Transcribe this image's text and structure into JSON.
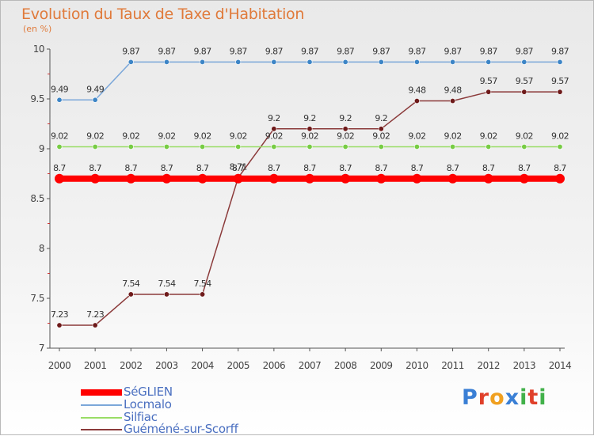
{
  "page": {
    "title": "Evolution du Taux de Taxe d'Habitation",
    "subtitle": "(en %)",
    "logo_text": "Proxiti"
  },
  "logo_colors": [
    "#3a7fd5",
    "#e0402a",
    "#f0a020",
    "#3a7fd5",
    "#42b14a",
    "#e0402a",
    "#42b14a"
  ],
  "chart_data": {
    "type": "line",
    "title": "Evolution du Taux de Taxe d'Habitation",
    "ylabel": "(en %)",
    "xlabel": "",
    "ylim": [
      7,
      10
    ],
    "yticks": [
      7,
      7.5,
      8,
      8.5,
      9,
      9.5,
      10
    ],
    "x": [
      2000,
      2001,
      2002,
      2003,
      2004,
      2005,
      2006,
      2007,
      2008,
      2009,
      2010,
      2011,
      2012,
      2013,
      2014
    ],
    "grid": false,
    "legend_position": "bottom-left",
    "series": [
      {
        "name": "SéGLIEN",
        "color": "#ff0000",
        "marker_color": "#ff0000",
        "values": [
          8.7,
          8.7,
          8.7,
          8.7,
          8.7,
          8.7,
          8.7,
          8.7,
          8.7,
          8.7,
          8.7,
          8.7,
          8.7,
          8.7,
          8.7
        ],
        "labels": [
          "8.7",
          "8.7",
          "8.7",
          "8.7",
          "8.7",
          "8.7",
          "8.7",
          "8.7",
          "8.7",
          "8.7",
          "8.7",
          "8.7",
          "8.7",
          "8.7",
          "8.7"
        ]
      },
      {
        "name": "Locmalo",
        "color": "#7ba7d9",
        "marker_color": "#3d85c6",
        "values": [
          9.49,
          9.49,
          9.87,
          9.87,
          9.87,
          9.87,
          9.87,
          9.87,
          9.87,
          9.87,
          9.87,
          9.87,
          9.87,
          9.87,
          9.87
        ],
        "labels": [
          "9.49",
          "9.49",
          "9.87",
          "9.87",
          "9.87",
          "9.87",
          "9.87",
          "9.87",
          "9.87",
          "9.87",
          "9.87",
          "9.87",
          "9.87",
          "9.87",
          "9.87"
        ]
      },
      {
        "name": "Silfiac",
        "color": "#99dd66",
        "marker_color": "#77cc44",
        "values": [
          9.02,
          9.02,
          9.02,
          9.02,
          9.02,
          9.02,
          9.02,
          9.02,
          9.02,
          9.02,
          9.02,
          9.02,
          9.02,
          9.02,
          9.02
        ],
        "labels": [
          "9.02",
          "9.02",
          "9.02",
          "9.02",
          "9.02",
          "9.02",
          "9.02",
          "9.02",
          "9.02",
          "9.02",
          "9.02",
          "9.02",
          "9.02",
          "9.02",
          "9.02"
        ]
      },
      {
        "name": "Guéméné-sur-Scorff",
        "color": "#8b3a3a",
        "marker_color": "#6e1a1a",
        "values": [
          7.23,
          7.23,
          7.54,
          7.54,
          7.54,
          8.71,
          9.2,
          9.2,
          9.2,
          9.2,
          9.48,
          9.48,
          9.57,
          9.57,
          9.57
        ],
        "labels": [
          "7.23",
          "7.23",
          "7.54",
          "7.54",
          "7.54",
          "8.71",
          "9.2",
          "9.2",
          "9.2",
          "9.2",
          "9.48",
          "9.48",
          "9.57",
          "9.57",
          "9.57"
        ]
      }
    ]
  }
}
